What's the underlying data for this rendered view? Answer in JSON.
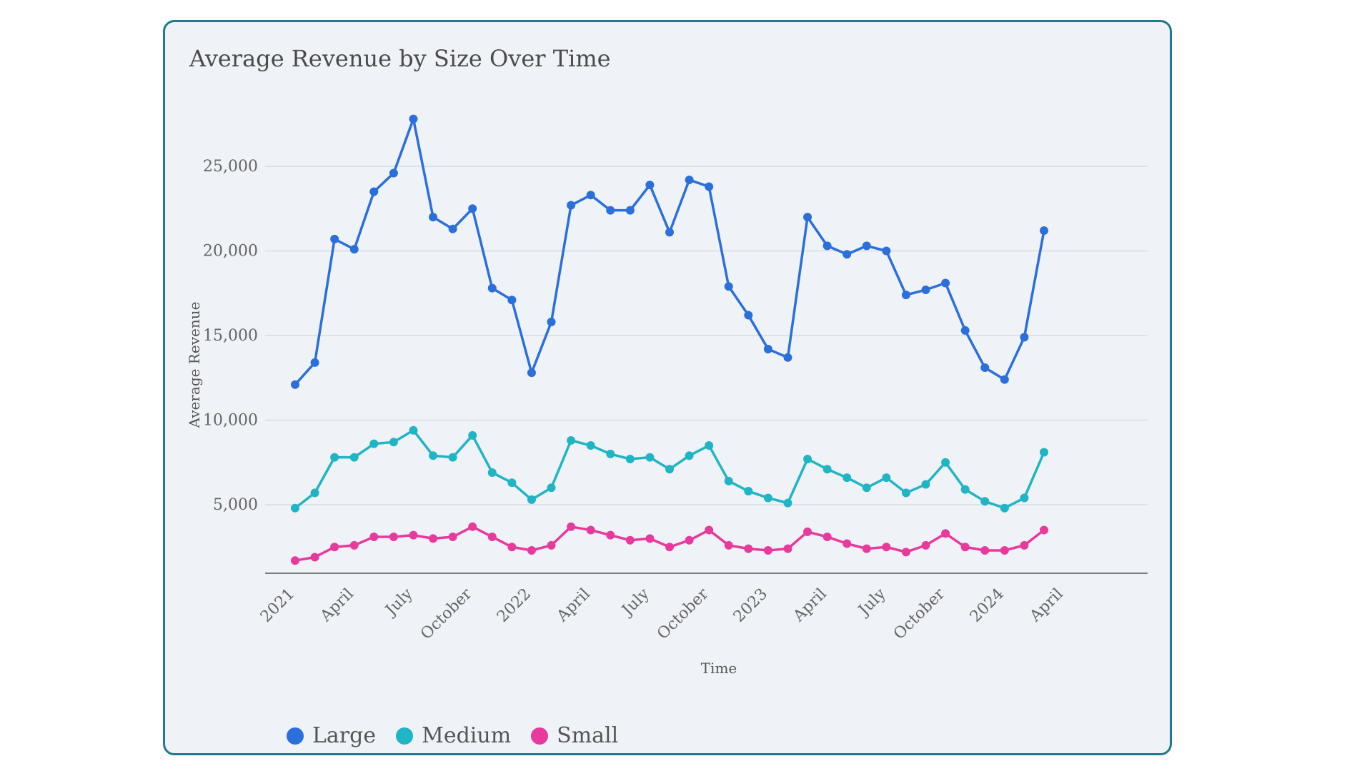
{
  "chart_data": {
    "type": "line",
    "title": "Average Revenue by Size Over Time",
    "xlabel": "Time",
    "ylabel": "Average Revenue",
    "ylim": [
      0,
      27000
    ],
    "yticks": [
      5000,
      10000,
      15000,
      20000,
      25000
    ],
    "ytick_labels": [
      "5,000",
      "10,000",
      "15,000",
      "20,000",
      "25,000"
    ],
    "x": [
      "2021-01",
      "2021-02",
      "2021-03",
      "2021-04",
      "2021-05",
      "2021-06",
      "2021-07",
      "2021-08",
      "2021-09",
      "2021-10",
      "2021-11",
      "2021-12",
      "2022-01",
      "2022-02",
      "2022-03",
      "2022-04",
      "2022-05",
      "2022-06",
      "2022-07",
      "2022-08",
      "2022-09",
      "2022-10",
      "2022-11",
      "2022-12",
      "2023-01",
      "2023-02",
      "2023-03",
      "2023-04",
      "2023-05",
      "2023-06",
      "2023-07",
      "2023-08",
      "2023-09",
      "2023-10",
      "2023-11",
      "2023-12",
      "2024-01",
      "2024-02",
      "2024-03"
    ],
    "xticks": [
      "2021-01",
      "2021-04",
      "2021-07",
      "2021-10",
      "2022-01",
      "2022-04",
      "2022-07",
      "2022-10",
      "2023-01",
      "2023-04",
      "2023-07",
      "2023-10",
      "2024-01",
      "2024-04"
    ],
    "xtick_labels": [
      "2021",
      "April",
      "July",
      "October",
      "2022",
      "April",
      "July",
      "October",
      "2023",
      "April",
      "July",
      "October",
      "2024",
      "April"
    ],
    "grid": true,
    "legend_position": "bottom-left",
    "series": [
      {
        "name": "Large",
        "color": "#2a6fdb",
        "values": [
          12100,
          13400,
          20700,
          20100,
          23500,
          24600,
          27800,
          22000,
          21300,
          22500,
          17800,
          17100,
          12800,
          15800,
          22700,
          23300,
          22400,
          22400,
          23900,
          21100,
          24200,
          23800,
          17900,
          16200,
          14200,
          13700,
          22000,
          20300,
          19800,
          20300,
          20000,
          17400,
          17700,
          18100,
          15300,
          13100,
          12400,
          14900,
          21200
        ]
      },
      {
        "name": "Medium",
        "color": "#1fb5c5",
        "values": [
          4800,
          5700,
          7800,
          7800,
          8600,
          8700,
          9400,
          7900,
          7800,
          9100,
          6900,
          6300,
          5300,
          6000,
          8800,
          8500,
          8000,
          7700,
          7800,
          7100,
          7900,
          8500,
          6400,
          5800,
          5400,
          5100,
          7700,
          7100,
          6600,
          6000,
          6600,
          5700,
          6200,
          7500,
          5900,
          5200,
          4800,
          5400,
          8100
        ]
      },
      {
        "name": "Small",
        "color": "#e8399d",
        "values": [
          1700,
          1900,
          2500,
          2600,
          3100,
          3100,
          3200,
          3000,
          3100,
          3700,
          3100,
          2500,
          2300,
          2600,
          3700,
          3500,
          3200,
          2900,
          3000,
          2500,
          2900,
          3500,
          2600,
          2400,
          2300,
          2400,
          3400,
          3100,
          2700,
          2400,
          2500,
          2200,
          2600,
          3300,
          2500,
          2300,
          2300,
          2600,
          3500
        ]
      }
    ]
  }
}
